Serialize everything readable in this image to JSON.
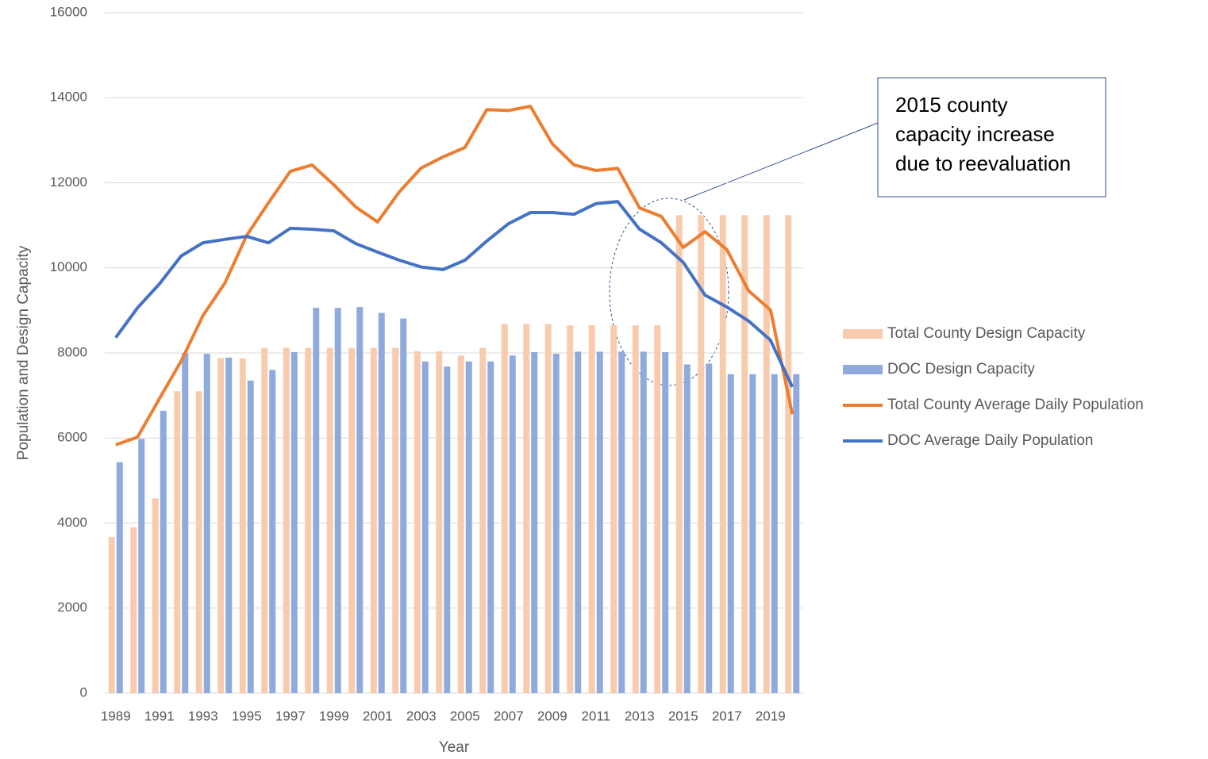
{
  "chart_data": {
    "type": "bar",
    "x_label": "Year",
    "y_label": "Population and Design Capacity",
    "categories": [
      "1989",
      null,
      "1991",
      null,
      "1993",
      null,
      "1995",
      null,
      "1997",
      null,
      "1999",
      null,
      "2001",
      null,
      "2003",
      null,
      "2005",
      null,
      "2007",
      null,
      "2009",
      null,
      "2011",
      null,
      "2013",
      null,
      "2015",
      null,
      "2017",
      null,
      "2019",
      null
    ],
    "series": [
      {
        "name": "Total County Design Capacity",
        "type": "bar",
        "color": "#f8cbad",
        "values": [
          3670,
          3900,
          4580,
          7100,
          7100,
          7880,
          7870,
          8120,
          8120,
          8120,
          8120,
          8120,
          8120,
          8120,
          8040,
          8040,
          7940,
          8120,
          8680,
          8680,
          8680,
          8650,
          8650,
          8650,
          8650,
          8650,
          11240,
          11240,
          11240,
          11240,
          11240,
          11240
        ]
      },
      {
        "name": "DOC Design Capacity",
        "type": "bar",
        "color": "#8faadc",
        "values": [
          5430,
          5980,
          6640,
          8000,
          7980,
          7890,
          7350,
          7600,
          8020,
          9060,
          9060,
          9080,
          8940,
          8810,
          7800,
          7680,
          7800,
          7800,
          7940,
          8020,
          7980,
          8030,
          8030,
          8030,
          8030,
          8020,
          7730,
          7750,
          7500,
          7500,
          7500,
          7500
        ]
      },
      {
        "name": "Total County Average Daily Population",
        "type": "line",
        "color": "#ed7d31",
        "values": [
          5840,
          6020,
          6920,
          7810,
          8880,
          9640,
          10760,
          11530,
          12270,
          12420,
          11950,
          11430,
          11080,
          11790,
          12350,
          12610,
          12830,
          13720,
          13700,
          13800,
          12920,
          12420,
          12290,
          12340,
          11410,
          11210,
          10480,
          10850,
          10430,
          9460,
          9010,
          6560
        ]
      },
      {
        "name": "DOC Average Daily Population",
        "type": "line",
        "color": "#4472c4",
        "values": [
          8360,
          9060,
          9620,
          10280,
          10590,
          10670,
          10740,
          10590,
          10930,
          10910,
          10870,
          10570,
          10370,
          10180,
          10020,
          9960,
          10180,
          10630,
          11040,
          11300,
          11300,
          11260,
          11510,
          11560,
          10910,
          10590,
          10130,
          9360,
          9080,
          8750,
          8300,
          7200
        ]
      }
    ],
    "ylim": [
      0,
      16000
    ],
    "yticks": [
      0,
      2000,
      4000,
      6000,
      8000,
      10000,
      12000,
      14000,
      16000
    ],
    "grid": true,
    "legend": "right",
    "annotation": [
      "2015 county",
      "capacity increase",
      "due to reevaluation"
    ]
  }
}
